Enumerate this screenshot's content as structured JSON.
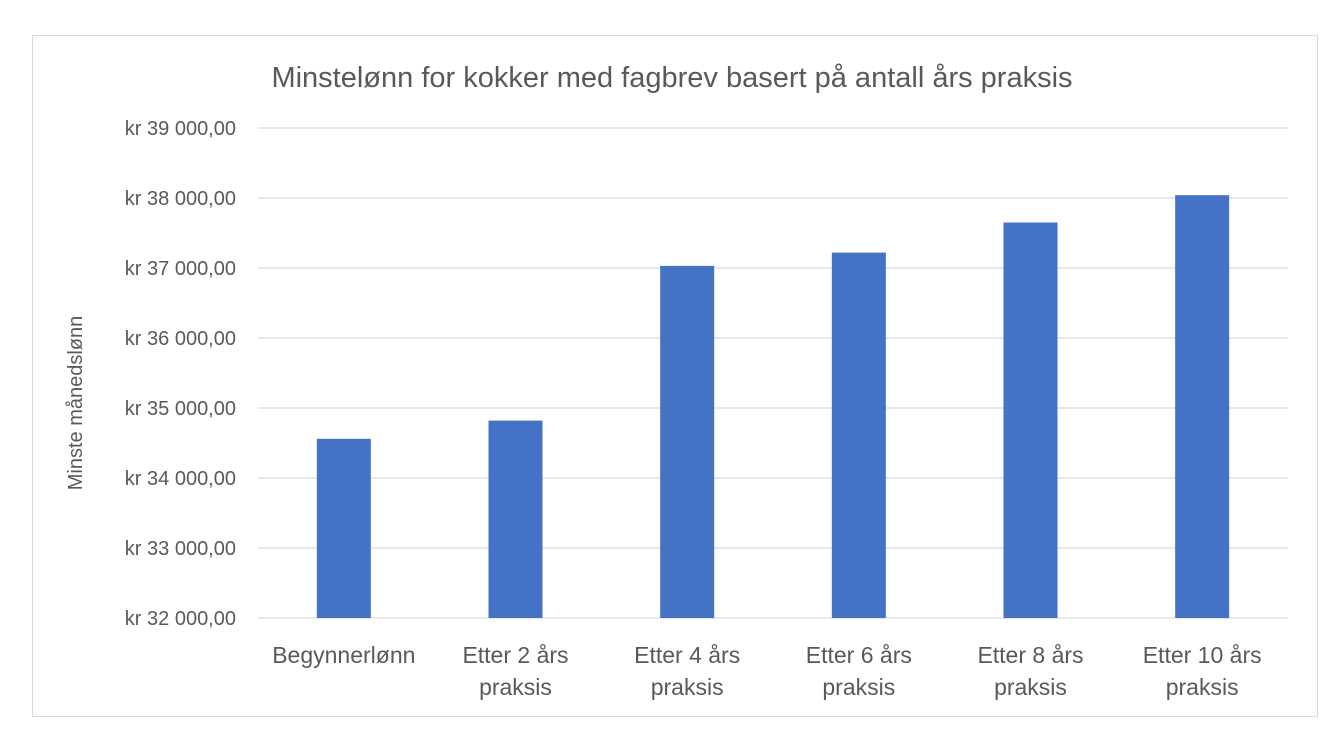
{
  "chart_data": {
    "type": "bar",
    "title": "Minstelønn for kokker med fagbrev basert på antall års praksis",
    "xlabel": "",
    "ylabel": "Minste månedslønn",
    "ylim": [
      32000,
      39000
    ],
    "y_ticks": [
      32000,
      33000,
      34000,
      35000,
      36000,
      37000,
      38000,
      39000
    ],
    "y_tick_labels": [
      "kr 32 000,00",
      "kr 33 000,00",
      "kr 34 000,00",
      "kr 35 000,00",
      "kr 36 000,00",
      "kr 37 000,00",
      "kr 38 000,00",
      "kr 39 000,00"
    ],
    "categories": [
      "Begynnerlønn",
      "Etter 2 års praksis",
      "Etter 4 års praksis",
      "Etter 6 års praksis",
      "Etter 8 års praksis",
      "Etter 10 års praksis"
    ],
    "category_lines": [
      [
        "Begynnerlønn"
      ],
      [
        "Etter 2 års",
        "praksis"
      ],
      [
        "Etter 4 års",
        "praksis"
      ],
      [
        "Etter 6 års",
        "praksis"
      ],
      [
        "Etter 8 års",
        "praksis"
      ],
      [
        "Etter 10 års",
        "praksis"
      ]
    ],
    "values": [
      34560,
      34820,
      37030,
      37220,
      37650,
      38040
    ],
    "bar_color": "#4472c4",
    "grid": true,
    "legend": "none"
  }
}
